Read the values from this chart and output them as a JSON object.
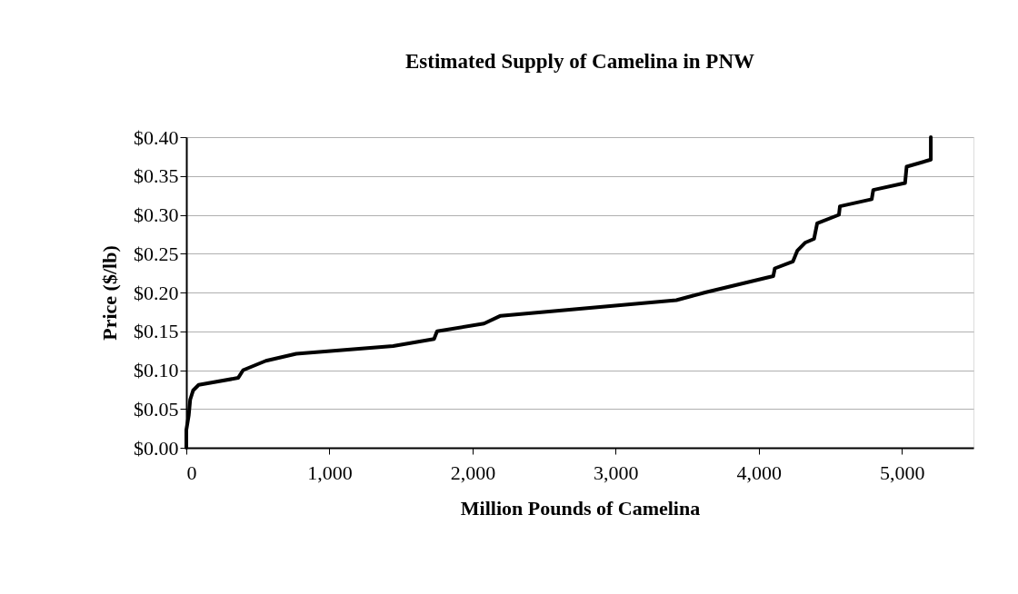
{
  "chart_data": {
    "type": "line",
    "title": "Estimated Supply of Camelina in PNW",
    "xlabel": "Million Pounds of Camelina",
    "ylabel": "Price ($/lb)",
    "x": [
      0,
      0,
      17,
      27,
      48,
      86,
      362,
      397,
      556,
      768,
      1445,
      1731,
      1752,
      2080,
      2196,
      2694,
      3424,
      3625,
      4101,
      4112,
      4239,
      4270,
      4323,
      4386,
      4408,
      4560,
      4567,
      4789,
      4800,
      5022,
      5033,
      5202,
      5202
    ],
    "series": [
      {
        "color": "#000000",
        "values": [
          0,
          0.023,
          0.042,
          0.062,
          0.074,
          0.081,
          0.09,
          0.1,
          0.112,
          0.121,
          0.131,
          0.14,
          0.15,
          0.16,
          0.17,
          0.178,
          0.19,
          0.2,
          0.221,
          0.231,
          0.24,
          0.254,
          0.264,
          0.269,
          0.289,
          0.3,
          0.311,
          0.32,
          0.332,
          0.341,
          0.362,
          0.371,
          0.4
        ]
      }
    ],
    "xlim": [
      0,
      5500
    ],
    "xticks": [
      0,
      {
        "value": 1000,
        "label": "1,000"
      },
      {
        "value": 2000,
        "label": "2,000"
      },
      {
        "value": 3000,
        "label": "3,000"
      },
      {
        "value": 4000,
        "label": "4,000"
      },
      {
        "value": 5000,
        "label": "5,000"
      }
    ],
    "ylim": [
      0,
      0.4
    ],
    "yticks": [
      {
        "value": 0,
        "label": "$0.00"
      },
      {
        "value": 0.05,
        "label": "$0.05"
      },
      {
        "value": 0.1,
        "label": "$0.10"
      },
      {
        "value": 0.15,
        "label": "$0.15"
      },
      {
        "value": 0.2,
        "label": "$0.20"
      },
      {
        "value": 0.25,
        "label": "$0.25"
      },
      {
        "value": 0.3,
        "label": "$0.30"
      },
      {
        "value": 0.35,
        "label": "$0.35"
      },
      {
        "value": 0.4,
        "label": "$0.40"
      }
    ],
    "grid": "y",
    "marker": "none",
    "line_style": "solid"
  }
}
